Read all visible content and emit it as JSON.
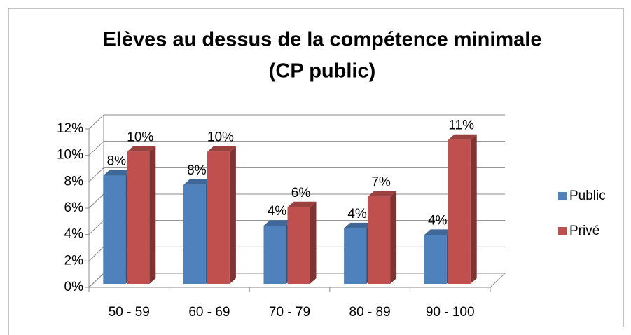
{
  "chart_data": {
    "type": "bar3d",
    "title": [
      "Elèves au dessus de la compétence minimale",
      "(CP public)"
    ],
    "categories": [
      "50 - 59",
      "60 - 69",
      "70 - 79",
      "80 - 89",
      "90 - 100"
    ],
    "series": [
      {
        "name": "Public",
        "color": "#4f81bd",
        "values": [
          8.2,
          7.5,
          4.4,
          4.2,
          3.7
        ],
        "value_labels": [
          "8%",
          "8%",
          "4%",
          "4%",
          "4%"
        ]
      },
      {
        "name": "Privé",
        "color": "#c0504d",
        "values": [
          10,
          10,
          5.8,
          6.6,
          10.9
        ],
        "value_labels": [
          "10%",
          "10%",
          "6%",
          "7%",
          "11%"
        ]
      }
    ],
    "ylim": [
      0,
      12
    ],
    "yticks": [
      {
        "value": 0,
        "label": "0%"
      },
      {
        "value": 2,
        "label": "2%"
      },
      {
        "value": 4,
        "label": "4%"
      },
      {
        "value": 6,
        "label": "6%"
      },
      {
        "value": 8,
        "label": "8%"
      },
      {
        "value": 10,
        "label": "10%"
      },
      {
        "value": 12,
        "label": "12%"
      }
    ],
    "grid": true,
    "legend": "right"
  }
}
